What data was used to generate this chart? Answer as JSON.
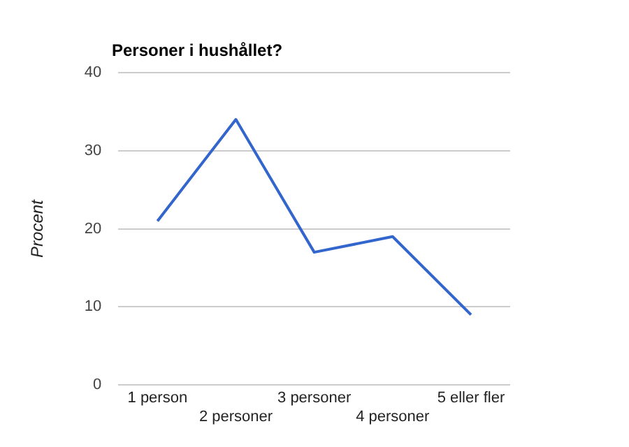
{
  "chart_data": {
    "type": "line",
    "title": "Personer i hushållet?",
    "ylabel": "Procent",
    "categories": [
      "1 person",
      "2 personer",
      "3 personer",
      "4 personer",
      "5 eller fler"
    ],
    "series": [
      {
        "color": "#3366cc",
        "values": [
          21,
          34,
          17,
          19,
          9
        ]
      }
    ],
    "ylim": [
      0,
      40
    ],
    "yticks": [
      0,
      10,
      20,
      30,
      40
    ],
    "grid": "y",
    "legend": false,
    "marker": "none",
    "line_style": "solid"
  }
}
